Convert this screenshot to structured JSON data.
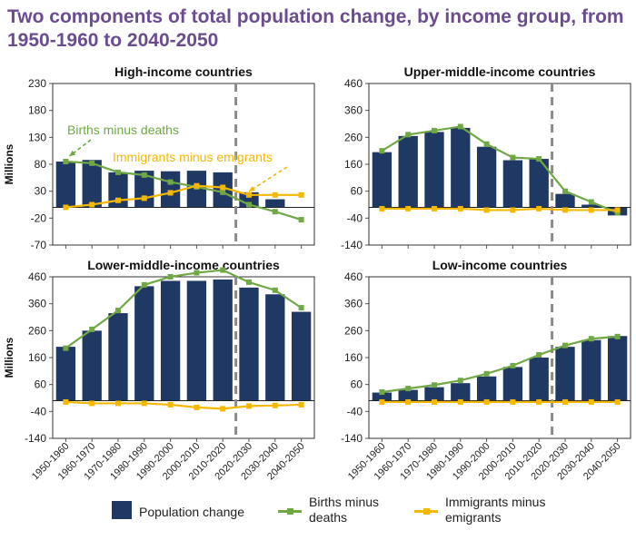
{
  "page": {
    "title": "Two components of total population change, by income group, from 1950-1960 to 2040-2050"
  },
  "colors": {
    "bar": "#1f3864",
    "births": "#70a845",
    "immigrants": "#f5b800",
    "divider": "#8a8a8a",
    "title": "#6b4c8f"
  },
  "legend": {
    "population": "Population change",
    "births": "Births minus deaths",
    "immigrants": "Immigrants minus emigrants"
  },
  "chart_data": [
    {
      "type": "bar",
      "title": "High-income countries",
      "ylabel": "Millions",
      "ylim": [
        -70,
        230
      ],
      "yticks": [
        230,
        180,
        130,
        80,
        30,
        -20,
        -70
      ],
      "categories": [
        "1950-1960",
        "1960-1970",
        "1970-1980",
        "1980-1990",
        "1990-2000",
        "2000-2010",
        "2010-2020",
        "2020-2030",
        "2030-2040",
        "2040-2050"
      ],
      "projection_start_after": "2010-2020",
      "series": [
        {
          "name": "Population change",
          "kind": "bar",
          "values": [
            85,
            88,
            65,
            68,
            67,
            68,
            65,
            28,
            15,
            0
          ]
        },
        {
          "name": "Births minus deaths",
          "kind": "line",
          "values": [
            85,
            82,
            65,
            60,
            47,
            38,
            28,
            5,
            -8,
            -23
          ]
        },
        {
          "name": "Immigrants minus emigrants",
          "kind": "line",
          "values": [
            0,
            5,
            13,
            17,
            27,
            40,
            37,
            23,
            23,
            23
          ]
        }
      ],
      "annotations": [
        {
          "text": "Births minus deaths",
          "series": "Births minus deaths"
        },
        {
          "text": "Immigrants minus emigrants",
          "series": "Immigrants minus emigrants"
        }
      ]
    },
    {
      "type": "bar",
      "title": "Upper-middle-income countries",
      "ylabel": "",
      "ylim": [
        -140,
        460
      ],
      "yticks": [
        460,
        360,
        260,
        160,
        60,
        -40,
        -140
      ],
      "categories": [
        "1950-1960",
        "1960-1970",
        "1970-1980",
        "1980-1990",
        "1990-2000",
        "2000-2010",
        "2010-2020",
        "2020-2030",
        "2030-2040",
        "2040-2050"
      ],
      "projection_start_after": "2010-2020",
      "series": [
        {
          "name": "Population change",
          "kind": "bar",
          "values": [
            205,
            265,
            280,
            295,
            225,
            175,
            180,
            50,
            10,
            -30
          ]
        },
        {
          "name": "Births minus deaths",
          "kind": "line",
          "values": [
            210,
            270,
            285,
            300,
            235,
            185,
            180,
            60,
            20,
            -20
          ]
        },
        {
          "name": "Immigrants minus emigrants",
          "kind": "line",
          "values": [
            -5,
            -5,
            -5,
            -5,
            -10,
            -10,
            -5,
            -10,
            -10,
            -10
          ]
        }
      ]
    },
    {
      "type": "bar",
      "title": "Lower-middle-income countries",
      "ylabel": "Millions",
      "ylim": [
        -140,
        460
      ],
      "yticks": [
        460,
        360,
        260,
        160,
        60,
        -40,
        -140
      ],
      "categories": [
        "1950-1960",
        "1960-1970",
        "1970-1980",
        "1980-1990",
        "1990-2000",
        "2000-2010",
        "2010-2020",
        "2020-2030",
        "2030-2040",
        "2040-2050"
      ],
      "projection_start_after": "2010-2020",
      "series": [
        {
          "name": "Population change",
          "kind": "bar",
          "values": [
            200,
            260,
            325,
            425,
            445,
            445,
            450,
            420,
            395,
            330
          ]
        },
        {
          "name": "Births minus deaths",
          "kind": "line",
          "values": [
            195,
            265,
            335,
            430,
            460,
            475,
            485,
            440,
            410,
            345
          ]
        },
        {
          "name": "Immigrants minus emigrants",
          "kind": "line",
          "values": [
            -5,
            -10,
            -10,
            -10,
            -15,
            -25,
            -30,
            -20,
            -18,
            -15
          ]
        }
      ]
    },
    {
      "type": "bar",
      "title": "Low-income countries",
      "ylabel": "",
      "ylim": [
        -140,
        460
      ],
      "yticks": [
        460,
        360,
        260,
        160,
        60,
        -40,
        -140
      ],
      "categories": [
        "1950-1960",
        "1960-1970",
        "1970-1980",
        "1980-1990",
        "1990-2000",
        "2000-2010",
        "2010-2020",
        "2020-2030",
        "2030-2040",
        "2040-2050"
      ],
      "projection_start_after": "2010-2020",
      "series": [
        {
          "name": "Population change",
          "kind": "bar",
          "values": [
            30,
            40,
            50,
            65,
            90,
            125,
            160,
            200,
            225,
            240
          ]
        },
        {
          "name": "Births minus deaths",
          "kind": "line",
          "values": [
            32,
            45,
            58,
            75,
            100,
            130,
            170,
            205,
            230,
            238
          ]
        },
        {
          "name": "Immigrants minus emigrants",
          "kind": "line",
          "values": [
            -5,
            -5,
            -5,
            -5,
            -5,
            -5,
            -5,
            -5,
            -5,
            -5
          ]
        }
      ]
    }
  ]
}
